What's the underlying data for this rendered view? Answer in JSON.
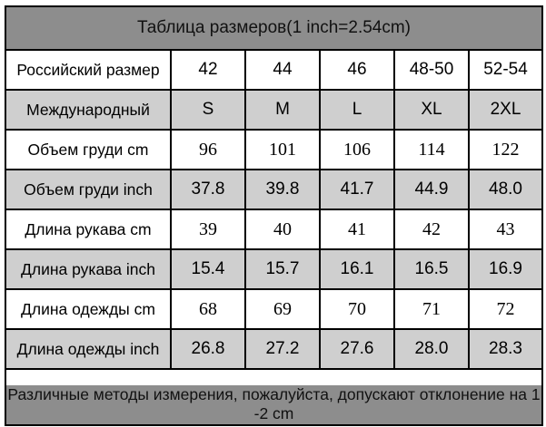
{
  "title": "Таблица размеров(1 inch=2.54cm)",
  "rows": [
    {
      "label": "Российский размер",
      "values": [
        "42",
        "44",
        "46",
        "48-50",
        "52-54"
      ],
      "shaded": false,
      "numeric_font": "sans"
    },
    {
      "label": "Международный",
      "values": [
        "S",
        "M",
        "L",
        "XL",
        "2XL"
      ],
      "shaded": true,
      "numeric_font": "sans"
    },
    {
      "label": "Объем груди cm",
      "values": [
        "96",
        "101",
        "106",
        "114",
        "122"
      ],
      "shaded": false,
      "numeric_font": "serif"
    },
    {
      "label": "Объем груди inch",
      "values": [
        "37.8",
        "39.8",
        "41.7",
        "44.9",
        "48.0"
      ],
      "shaded": true,
      "numeric_font": "sans"
    },
    {
      "label": "Длина рукава cm",
      "values": [
        "39",
        "40",
        "41",
        "42",
        "43"
      ],
      "shaded": false,
      "numeric_font": "serif"
    },
    {
      "label": "Длина рукава inch",
      "values": [
        "15.4",
        "15.7",
        "16.1",
        "16.5",
        "16.9"
      ],
      "shaded": true,
      "numeric_font": "sans"
    },
    {
      "label": "Длина одежды cm",
      "values": [
        "68",
        "69",
        "70",
        "71",
        "72"
      ],
      "shaded": false,
      "numeric_font": "serif"
    },
    {
      "label": "Длина одежды inch",
      "values": [
        "26.8",
        "27.2",
        "27.6",
        "28.0",
        "28.3"
      ],
      "shaded": true,
      "numeric_font": "sans"
    }
  ],
  "note": "Различные методы измерения, пожалуйста, допускают отклонение на 1-2 cm",
  "colors": {
    "header_gray": "#8d8d8d",
    "shaded_row": "#cfcfcf",
    "border": "#000000"
  }
}
